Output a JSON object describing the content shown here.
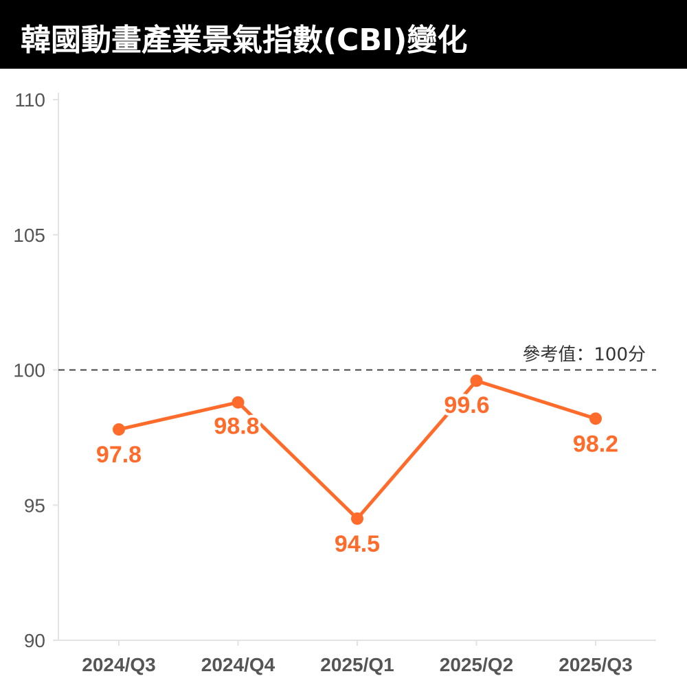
{
  "title": "韓國動畫產業景氣指數(CBI)變化",
  "colors": {
    "title_background": "#000000",
    "title_text": "#ffffff",
    "series": "#ff6b2b",
    "axis": "#e3e3e3",
    "tick_text": "#555555",
    "reference_line": "#444444"
  },
  "chart_data": {
    "type": "line",
    "title": "韓國動畫產業景氣指數(CBI)變化",
    "xlabel": "",
    "ylabel": "",
    "categories": [
      "2024/Q3",
      "2024/Q4",
      "2025/Q1",
      "2025/Q2",
      "2025/Q3"
    ],
    "series": [
      {
        "name": "",
        "values": [
          97.8,
          98.8,
          94.5,
          99.6,
          98.2
        ],
        "data_labels": [
          "97.8",
          "98.8",
          "94.5",
          "99.6",
          "98.2"
        ]
      }
    ],
    "ylim": [
      90,
      110
    ],
    "yticks": [
      "90",
      "95",
      "100",
      "105",
      "110"
    ],
    "reference_line": {
      "value": 100,
      "style": "dashed",
      "label": "參考值：100分"
    },
    "grid": false,
    "legend": "none",
    "data_label_position": [
      "below",
      "left",
      "below",
      "below",
      "below"
    ]
  }
}
